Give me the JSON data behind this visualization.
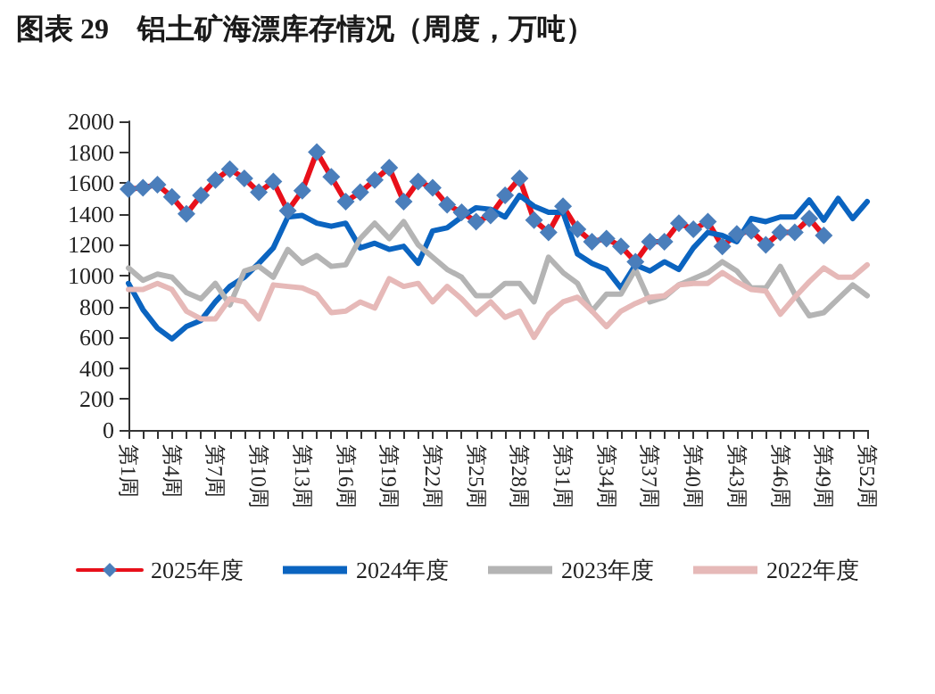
{
  "chart_data": {
    "type": "line",
    "title": "图表 29　铝土矿海漂库存情况（周度，万吨）",
    "categories": [
      "第1周",
      null,
      null,
      "第4周",
      null,
      null,
      "第7周",
      null,
      null,
      "第10周",
      null,
      null,
      "第13周",
      null,
      null,
      "第16周",
      null,
      null,
      "第19周",
      null,
      null,
      "第22周",
      null,
      null,
      "第25周",
      null,
      null,
      "第28周",
      null,
      null,
      "第31周",
      null,
      null,
      "第34周",
      null,
      null,
      "第37周",
      null,
      null,
      "第40周",
      null,
      null,
      "第43周",
      null,
      null,
      "第46周",
      null,
      null,
      "第49周",
      null,
      null,
      "第52周"
    ],
    "series": [
      {
        "name": "2025年度",
        "color": "#e8101a",
        "marker": "diamond",
        "values": [
          1560,
          1570,
          1590,
          1510,
          1400,
          1520,
          1620,
          1690,
          1630,
          1540,
          1610,
          1420,
          1550,
          1800,
          1640,
          1480,
          1540,
          1620,
          1700,
          1480,
          1610,
          1570,
          1460,
          1410,
          1350,
          1390,
          1520,
          1630,
          1360,
          1280,
          1450,
          1300,
          1220,
          1240,
          1190,
          1090,
          1220,
          1220,
          1340,
          1300,
          1350,
          1190,
          1270,
          1290,
          1200,
          1280,
          1280,
          1370,
          1260,
          null,
          null,
          null
        ]
      },
      {
        "name": "2024年度",
        "color": "#0b64c0",
        "values": [
          950,
          780,
          660,
          590,
          670,
          710,
          830,
          930,
          990,
          1080,
          1180,
          1380,
          1390,
          1340,
          1320,
          1340,
          1180,
          1210,
          1170,
          1190,
          1080,
          1290,
          1310,
          1380,
          1440,
          1430,
          1380,
          1520,
          1450,
          1410,
          1410,
          1140,
          1080,
          1040,
          920,
          1070,
          1030,
          1090,
          1040,
          1180,
          1280,
          1260,
          1220,
          1370,
          1350,
          1380,
          1380,
          1490,
          1360,
          1500,
          1370,
          1480
        ]
      },
      {
        "name": "2023年度",
        "color": "#b4b4b4",
        "values": [
          1050,
          970,
          1010,
          990,
          890,
          850,
          950,
          810,
          1030,
          1060,
          990,
          1170,
          1080,
          1130,
          1060,
          1070,
          1240,
          1340,
          1240,
          1350,
          1200,
          1120,
          1040,
          990,
          870,
          870,
          950,
          950,
          830,
          1120,
          1020,
          950,
          770,
          880,
          880,
          1040,
          830,
          860,
          940,
          980,
          1020,
          1090,
          1030,
          920,
          920,
          1060,
          880,
          740,
          760,
          850,
          940,
          870
        ]
      },
      {
        "name": "2022年度",
        "color": "#e6b9b8",
        "values": [
          910,
          910,
          950,
          910,
          770,
          720,
          720,
          850,
          830,
          720,
          940,
          930,
          920,
          880,
          760,
          770,
          830,
          790,
          980,
          930,
          950,
          830,
          930,
          850,
          750,
          830,
          730,
          770,
          600,
          750,
          830,
          860,
          770,
          670,
          770,
          820,
          860,
          870,
          940,
          950,
          950,
          1020,
          960,
          910,
          900,
          750,
          860,
          960,
          1050,
          990,
          990,
          1070
        ]
      }
    ],
    "ylim": [
      0,
      2000
    ],
    "yticks": [
      0,
      200,
      400,
      600,
      800,
      1000,
      1200,
      1400,
      1600,
      1800,
      2000
    ],
    "grid": false,
    "legend": "bottom",
    "marker": "none",
    "line_style": "solid"
  }
}
